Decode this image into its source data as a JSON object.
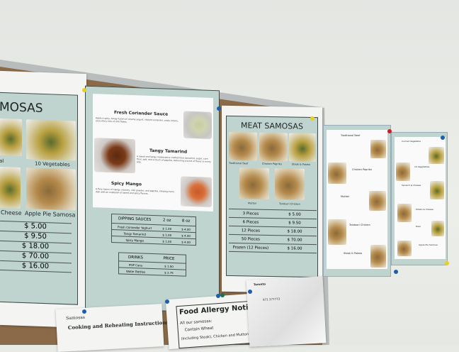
{
  "left_poster": {
    "title": "MOSAS",
    "items": [
      "al",
      "10 Vegetables",
      "Cheese",
      "Apple Pie Samosa"
    ],
    "prices": [
      "$ 5.00",
      "$ 9.50",
      "$ 18.00",
      "$ 70.00",
      "$ 16.00"
    ]
  },
  "sauce_poster": {
    "sauces": [
      {
        "name": "Fresh Coriander Sauce",
        "desc": "Apple a spicy, tangy fusion of creamy yogurt, vibrant coriander, zesty onions, and a fiery kick of chili flakes."
      },
      {
        "name": "Tangy Tamarind",
        "desc": "A sweet and tangy masterpiece crafted from tamarind, sugar, corn flour, salt, and a touch of paprika, delivering a burst of flavor in every bite."
      },
      {
        "name": "Spicy Mango",
        "desc": "A fiery fusion of mango chutney, chili powder, and paprika, infusing every dish with an explosion of sweet and spicy flavors."
      }
    ],
    "dipping_table": {
      "headers": [
        "DIPPING SAUCES",
        "2 oz",
        "8 oz"
      ],
      "rows": [
        [
          "Fresh Coriander Yoghurt",
          "$ 1.00",
          "$ 4.00"
        ],
        [
          "Tangy Tamarind",
          "$ 1.00",
          "$ 4.00"
        ],
        [
          "Spicy Mango",
          "$ 1.00",
          "$ 4.00"
        ]
      ]
    },
    "drinks_table": {
      "headers": [
        "DRINKS",
        "PRICE"
      ],
      "rows": [
        [
          "POP Cans",
          "$ 1.50"
        ],
        [
          "Water Bottles",
          "$ 2.75"
        ]
      ]
    }
  },
  "meat_poster": {
    "title": "MEAT SAMOSAS",
    "items": [
      "Traditional Beef",
      "Chicken Paprika",
      "Steak & Potato",
      "Mutton",
      "Tandoori Chicken"
    ],
    "prices": [
      [
        "3 Pieces",
        "$ 5.00"
      ],
      [
        "6 Pieces",
        "$ 9.50"
      ],
      [
        "12 Pieces",
        "$ 18.00"
      ],
      [
        "50 Pieces",
        "$ 70.00"
      ],
      [
        "Frozen (12 Pieces)",
        "$ 16.00"
      ]
    ]
  },
  "meat_desc_poster": {
    "items": [
      "Traditional Beef",
      "Chicken Paprika",
      "Mutton",
      "Tandoori Chicken",
      "Steak & Potato"
    ]
  },
  "veg_desc_poster": {
    "items": [
      "Curried Vegetable",
      "10 Vegetables",
      "Spinach & Cheese",
      "Potato & Cheese",
      "Daal",
      "Apple Pie Samosa"
    ]
  },
  "notices": {
    "cooking_brand": "Samosas",
    "cooking_title": "Cooking and Reheating Instructions",
    "allergy_title": "Food Allergy Notice",
    "allergy_intro": "All our samosas:",
    "allergy_item": "Contain Wheat",
    "allergy_line2": "(Including Steak), Chicken and Mutton",
    "inspection_header": "Toronto",
    "inspection_number": "971 377773"
  },
  "colors": {
    "poster_teal": "#bfd3cf",
    "cork": "#8a6a48",
    "frame": "#b9bcbc"
  }
}
